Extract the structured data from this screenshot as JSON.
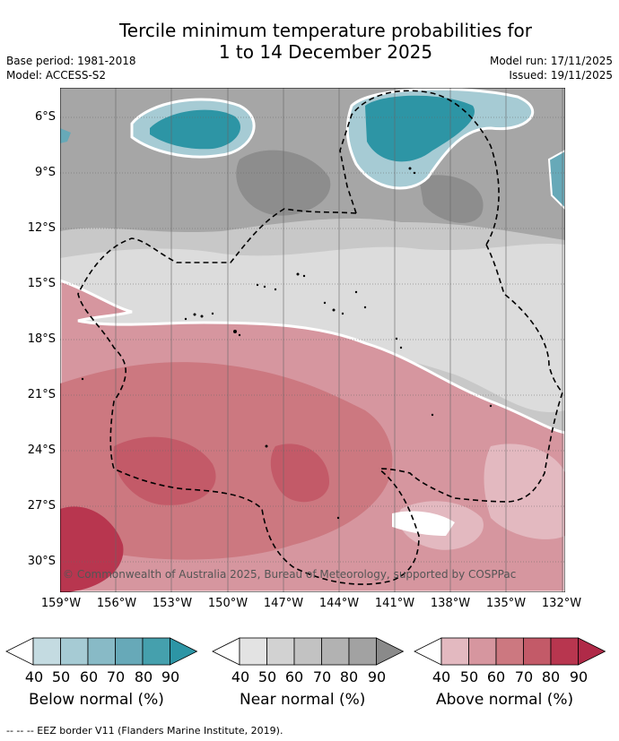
{
  "title_line1": "Tercile minimum temperature probabilities for",
  "title_line2": "1 to 14 December 2025",
  "base_period": "Base period: 1981-2018",
  "model": "Model: ACCESS-S2",
  "model_run": "Model run: 17/11/2025",
  "issued": "Issued: 19/11/2025",
  "lat_labels": [
    "6°S",
    "9°S",
    "12°S",
    "15°S",
    "18°S",
    "21°S",
    "24°S",
    "27°S",
    "30°S"
  ],
  "lon_labels": [
    "159°W",
    "156°W",
    "153°W",
    "150°W",
    "147°W",
    "144°W",
    "141°W",
    "138°W",
    "135°W",
    "132°W"
  ],
  "copyright": "© Commonwealth of Australia 2025, Bureau of Meteorology, supported by COSPPac",
  "colorbars": [
    {
      "label": "Below normal (%)",
      "ticks": [
        "40",
        "50",
        "60",
        "70",
        "80",
        "90"
      ],
      "colors": [
        "#ffffff",
        "#c4dbe1",
        "#a6cbd4",
        "#88bac6",
        "#67a9b8",
        "#45a0ad",
        "#2d95a5"
      ]
    },
    {
      "label": "Near normal (%)",
      "ticks": [
        "40",
        "50",
        "60",
        "70",
        "80",
        "90"
      ],
      "colors": [
        "#ffffff",
        "#e3e3e3",
        "#d2d2d2",
        "#c2c2c2",
        "#b2b2b2",
        "#a2a2a2",
        "#8a8a8a"
      ]
    },
    {
      "label": "Above normal (%)",
      "ticks": [
        "40",
        "50",
        "60",
        "70",
        "80",
        "90"
      ],
      "colors": [
        "#ffffff",
        "#e3b9c0",
        "#d6969f",
        "#cc7880",
        "#c35a68",
        "#b8364f",
        "#b02a48"
      ]
    }
  ],
  "footer": "--  --  -- EEZ border V11 (Flanders Marine Institute, 2019)."
}
